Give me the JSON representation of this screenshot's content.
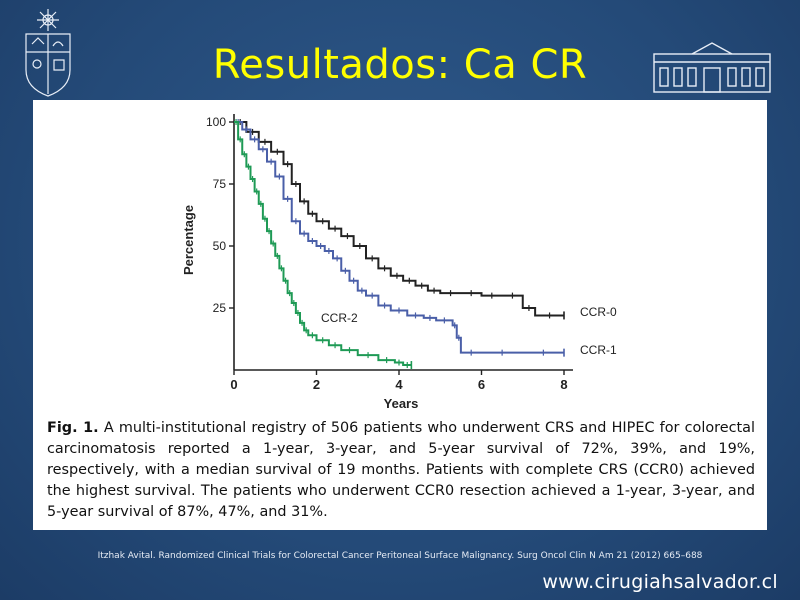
{
  "slide": {
    "title": "Resultados: Ca CR",
    "citation": "Itzhak Avital. Randomized Clinical Trials for Colorectal Cancer Peritoneal Surface Malignancy. Surg Oncol Clin N Am 21 (2012) 665–688",
    "url": "www.cirugiahsalvador.cl"
  },
  "caption": {
    "fig_label": "Fig. 1.",
    "text": " A multi-institutional registry of 506 patients who underwent CRS and HIPEC for colorectal carcinomatosis reported a 1-year, 3-year, and 5-year survival of 72%, 39%, and 19%, respectively, with a median survival of 19 months. Patients with complete CRS (CCR0) achieved the highest survival. The patients who underwent CCR0 resection achieved a 1-year, 3-year, and 5-year survival of 87%, 47%, and 31%."
  },
  "colors": {
    "background": "#244a78",
    "title": "#ffff00",
    "ccr0": "#222222",
    "ccr1": "#4a5fa8",
    "ccr2": "#1e9a55"
  },
  "chart_data": {
    "type": "line",
    "title": "",
    "xlabel": "Years",
    "ylabel": "Percentage",
    "xlim": [
      0,
      8
    ],
    "ylim": [
      0,
      100
    ],
    "xticks": [
      0,
      2,
      4,
      6,
      8
    ],
    "yticks": [
      25,
      50,
      75,
      100
    ],
    "grid": false,
    "series": [
      {
        "name": "CCR-0",
        "color": "#222222",
        "points": [
          [
            0,
            100
          ],
          [
            0.3,
            96
          ],
          [
            0.6,
            92
          ],
          [
            0.9,
            88
          ],
          [
            1.2,
            83
          ],
          [
            1.4,
            75
          ],
          [
            1.6,
            68
          ],
          [
            1.8,
            63
          ],
          [
            2,
            60
          ],
          [
            2.3,
            57
          ],
          [
            2.6,
            54
          ],
          [
            2.9,
            50
          ],
          [
            3.2,
            45
          ],
          [
            3.5,
            41
          ],
          [
            3.8,
            38
          ],
          [
            4.1,
            36
          ],
          [
            4.4,
            34
          ],
          [
            4.7,
            32
          ],
          [
            5,
            31
          ],
          [
            5.5,
            31
          ],
          [
            6,
            30
          ],
          [
            6.5,
            30
          ],
          [
            7,
            25
          ],
          [
            7.3,
            22
          ],
          [
            8,
            22
          ]
        ]
      },
      {
        "name": "CCR-1",
        "color": "#4a5fa8",
        "points": [
          [
            0,
            100
          ],
          [
            0.2,
            97
          ],
          [
            0.4,
            93
          ],
          [
            0.6,
            89
          ],
          [
            0.8,
            84
          ],
          [
            1,
            78
          ],
          [
            1.2,
            69
          ],
          [
            1.4,
            60
          ],
          [
            1.6,
            55
          ],
          [
            1.8,
            52
          ],
          [
            2,
            50
          ],
          [
            2.2,
            48
          ],
          [
            2.4,
            45
          ],
          [
            2.6,
            40
          ],
          [
            2.8,
            36
          ],
          [
            3,
            32
          ],
          [
            3.2,
            30
          ],
          [
            3.5,
            26
          ],
          [
            3.8,
            24
          ],
          [
            4.2,
            22
          ],
          [
            4.6,
            21
          ],
          [
            4.9,
            20
          ],
          [
            5.3,
            18
          ],
          [
            5.4,
            13
          ],
          [
            5.5,
            7
          ],
          [
            6,
            7
          ],
          [
            7,
            7
          ],
          [
            8,
            7
          ]
        ]
      },
      {
        "name": "CCR-2",
        "color": "#1e9a55",
        "points": [
          [
            0,
            100
          ],
          [
            0.1,
            93
          ],
          [
            0.2,
            87
          ],
          [
            0.3,
            82
          ],
          [
            0.4,
            77
          ],
          [
            0.5,
            72
          ],
          [
            0.6,
            67
          ],
          [
            0.7,
            61
          ],
          [
            0.8,
            56
          ],
          [
            0.9,
            51
          ],
          [
            1,
            46
          ],
          [
            1.1,
            41
          ],
          [
            1.2,
            36
          ],
          [
            1.3,
            31
          ],
          [
            1.4,
            27
          ],
          [
            1.5,
            23
          ],
          [
            1.6,
            19
          ],
          [
            1.7,
            16
          ],
          [
            1.8,
            14
          ],
          [
            2,
            12
          ],
          [
            2.3,
            10
          ],
          [
            2.6,
            8
          ],
          [
            3,
            6
          ],
          [
            3.5,
            4
          ],
          [
            3.9,
            3
          ],
          [
            4.1,
            2
          ],
          [
            4.3,
            2
          ]
        ]
      }
    ],
    "annotations": [
      "CCR-2",
      "CCR-0",
      "CCR-1"
    ]
  }
}
